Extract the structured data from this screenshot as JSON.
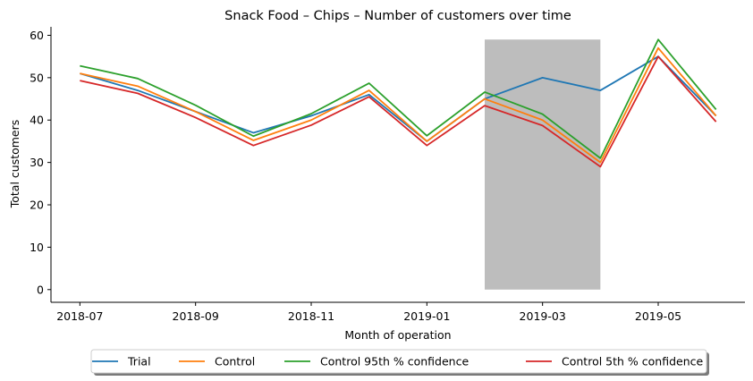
{
  "chart_data": {
    "type": "line",
    "title": "Snack Food – Chips – Number of customers over time",
    "xlabel": "Month of operation",
    "ylabel": "Total customers",
    "x": [
      "2018-07",
      "2018-08",
      "2018-09",
      "2018-10",
      "2018-11",
      "2018-12",
      "2019-01",
      "2019-02",
      "2019-03",
      "2019-04",
      "2019-05",
      "2019-06"
    ],
    "x_ticks": [
      "2018-07",
      "2018-09",
      "2018-11",
      "2019-01",
      "2019-03",
      "2019-05"
    ],
    "ylim": [
      -3,
      62
    ],
    "y_ticks": [
      0,
      10,
      20,
      30,
      40,
      50,
      60
    ],
    "grid": false,
    "legend_placement": "bottom-center",
    "shaded_region": {
      "x_start": "2019-02",
      "x_end": "2019-04",
      "y_start": 0,
      "y_end": 59,
      "color": "#bdbdbd"
    },
    "series": [
      {
        "name": "Trial",
        "color": "#1f77b4",
        "values": [
          51,
          47,
          42,
          37,
          41,
          46,
          35,
          45,
          50,
          47,
          55,
          41
        ]
      },
      {
        "name": "Control",
        "color": "#ff7f0e",
        "values": [
          51,
          48,
          42,
          35.2,
          40,
          47,
          35,
          45,
          40,
          30,
          57,
          41
        ]
      },
      {
        "name": "Control 95th % confidence",
        "color": "#2ca02c",
        "values": [
          52.8,
          49.8,
          43.5,
          36.2,
          41.5,
          48.7,
          36.3,
          46.6,
          41.4,
          31,
          59,
          42.5
        ]
      },
      {
        "name": "Control 5th % confidence",
        "color": "#d62728",
        "values": [
          49.3,
          46.3,
          40.6,
          34,
          38.8,
          45.5,
          34,
          43.4,
          38.7,
          29,
          55,
          39.6
        ]
      }
    ]
  }
}
